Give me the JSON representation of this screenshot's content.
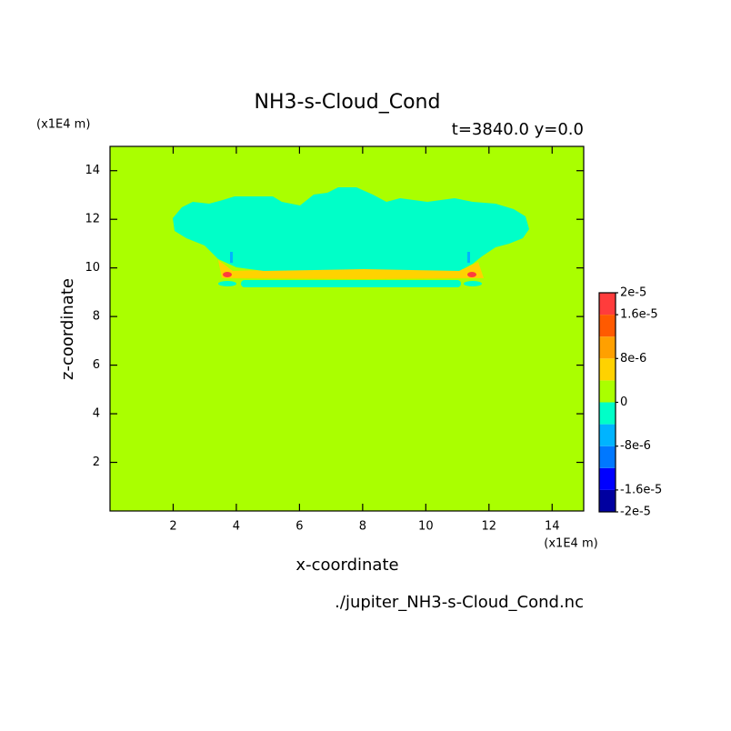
{
  "chart_data": {
    "type": "contour",
    "title": "NH3-s-Cloud_Cond",
    "subtitle": "t=3840.0 y=0.0",
    "xlabel": "x-coordinate",
    "ylabel": "z-coordinate",
    "x_unit": "(x1E4 m)",
    "y_unit": "(x1E4 m)",
    "annotation": "./jupiter_NH3-s-Cloud_Cond.nc",
    "xlim": [
      0,
      15
    ],
    "ylim": [
      0,
      15
    ],
    "xticks": [
      2,
      4,
      6,
      8,
      10,
      12,
      14
    ],
    "yticks": [
      2,
      4,
      6,
      8,
      10,
      12,
      14
    ],
    "colorbar": {
      "levels": [
        -2e-05,
        -1.6e-05,
        -1.2e-05,
        -8e-06,
        -4e-06,
        0,
        4e-06,
        8e-06,
        1.2e-05,
        1.6e-05,
        2e-05
      ],
      "colors": [
        "#0000a0",
        "#0000ff",
        "#0078ff",
        "#00b4ff",
        "#00ffc8",
        "#aaff00",
        "#ffd200",
        "#ffa000",
        "#ff5a00",
        "#ff3c3c"
      ],
      "ticks": [
        {
          "value": 2e-05,
          "label": "2e-5"
        },
        {
          "value": 1.6e-05,
          "label": "1.6e-5"
        },
        {
          "value": 8e-06,
          "label": "8e-6"
        },
        0,
        {
          "value": -8e-06,
          "label": "-8e-6"
        },
        {
          "value": -1.6e-05,
          "label": "-1.6e-5"
        },
        {
          "value": -2e-05,
          "label": "-2e-5"
        }
      ]
    }
  }
}
